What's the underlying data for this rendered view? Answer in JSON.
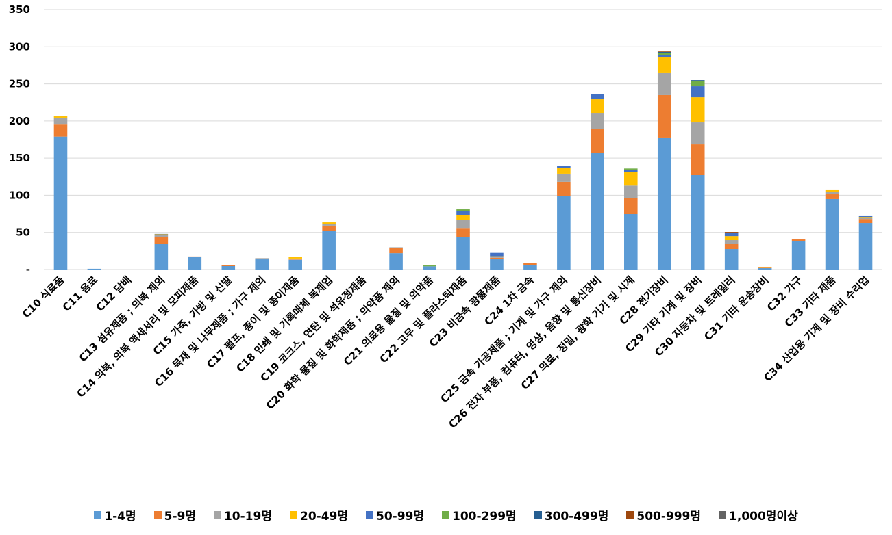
{
  "chart_data": {
    "type": "bar",
    "stacked": true,
    "title": "",
    "xlabel": "",
    "ylabel": "",
    "ylim": [
      0,
      350
    ],
    "yticks": [
      0,
      50,
      100,
      150,
      200,
      250,
      300,
      350
    ],
    "ytick_labels": [
      "-",
      "50",
      "100",
      "150",
      "200",
      "250",
      "300",
      "350"
    ],
    "grid": true,
    "legend_position": "bottom",
    "categories": [
      "C10 식료품",
      "C11 음료",
      "C12 담배",
      "C13 섬유제품 ; 의복 제외",
      "C14 의복, 의복 액세서리 및 모피제품",
      "C15 가죽, 가방 및 신발",
      "C16 목재 및 나무제품 ; 가구 제외",
      "C17 펄프, 종이 및 종이제품",
      "C18 인쇄 및 기록매체 복제업",
      "C19 코크스, 연탄 및 석유정제품",
      "C20 화학 물질 및 화학제품 ; 의약품 제외",
      "C21 의료용 물질 및 의약품",
      "C22 고무 및 플라스틱제품",
      "C23 비금속 광물제품",
      "C24 1차 금속",
      "C25 금속 가공제품 ; 기계 및 가구 제외",
      "C26 전자 부품, 컴퓨터, 영상, 음향 및 통신장비",
      "C27 의료, 정밀, 광학 기기 및 시계",
      "C28 전기장비",
      "C29 기타 기계 및 장비",
      "C30 자동차 및 트레일러",
      "C31 기타 운송장비",
      "C32 가구",
      "C33 기타 제품",
      "C34 산업용 기계 및 장비 수리업"
    ],
    "series": [
      {
        "name": "1-4명",
        "color": "#5B9BD5",
        "values": [
          179,
          1,
          0,
          35,
          16.6,
          4.6,
          13.8,
          13,
          51.6,
          0,
          22,
          4.3,
          43.3,
          13.8,
          6.4,
          98.6,
          156.6,
          74.6,
          177.8,
          127.1,
          27.6,
          1.8,
          38.7,
          94.9,
          62.6
        ]
      },
      {
        "name": "5-9명",
        "color": "#ED7D31",
        "values": [
          17,
          0,
          0,
          9,
          1,
          1,
          1,
          0.5,
          7.4,
          0,
          7,
          0,
          12.7,
          2,
          1.9,
          19.4,
          33.1,
          22.1,
          57.1,
          41.4,
          7.4,
          0.7,
          1.8,
          6.4,
          5.4
        ]
      },
      {
        "name": "10-19명",
        "color": "#A5A5A5",
        "values": [
          8.5,
          0,
          0,
          2.5,
          0,
          0,
          0.6,
          1.3,
          2.5,
          0,
          1,
          0,
          11,
          1,
          0,
          11,
          21.2,
          16.3,
          30.4,
          29.5,
          4.6,
          0,
          0,
          3.7,
          2
        ]
      },
      {
        "name": "20-49명",
        "color": "#FFC000",
        "values": [
          1.8,
          0,
          0,
          1,
          0,
          0,
          0,
          1.8,
          2,
          0,
          0,
          0,
          6.7,
          1,
          0.7,
          8,
          18.4,
          18.7,
          20.2,
          34,
          5.4,
          1.2,
          0,
          2.8,
          0.7
        ]
      },
      {
        "name": "50-99명",
        "color": "#4472C4",
        "values": [
          0.9,
          0,
          0,
          0.5,
          0,
          0,
          0,
          0,
          0,
          0,
          0,
          0,
          5.3,
          4.6,
          0,
          3,
          6.5,
          2.8,
          2.8,
          14.8,
          3.8,
          0,
          0,
          0,
          2.1
        ]
      },
      {
        "name": "100-299명",
        "color": "#70AD47",
        "values": [
          0,
          0,
          0,
          0,
          0,
          0,
          0,
          0,
          0,
          0,
          0,
          1.2,
          2,
          0,
          0,
          0,
          0.9,
          1.5,
          3.7,
          7.2,
          0.9,
          0,
          0,
          0,
          0
        ]
      },
      {
        "name": "300-499명",
        "color": "#255E91",
        "values": [
          0,
          0,
          0,
          0,
          0,
          0,
          0,
          0,
          0,
          0,
          0,
          0,
          0,
          0,
          0,
          0,
          0,
          0,
          1,
          1,
          0,
          0,
          0,
          0,
          0
        ]
      },
      {
        "name": "500-999명",
        "color": "#9E480E",
        "values": [
          0,
          0,
          0,
          0,
          0,
          0,
          0,
          0,
          0,
          0,
          0,
          0,
          0,
          0,
          0,
          0,
          0,
          0,
          0.7,
          0,
          0.9,
          0,
          0,
          0,
          0
        ]
      },
      {
        "name": "1,000명이상",
        "color": "#636363",
        "values": [
          0,
          0,
          0,
          0,
          0,
          0,
          0,
          0,
          0,
          0,
          0,
          0,
          0,
          0,
          0,
          0,
          0,
          0,
          0,
          0,
          0,
          0,
          0,
          0,
          0
        ]
      }
    ]
  }
}
